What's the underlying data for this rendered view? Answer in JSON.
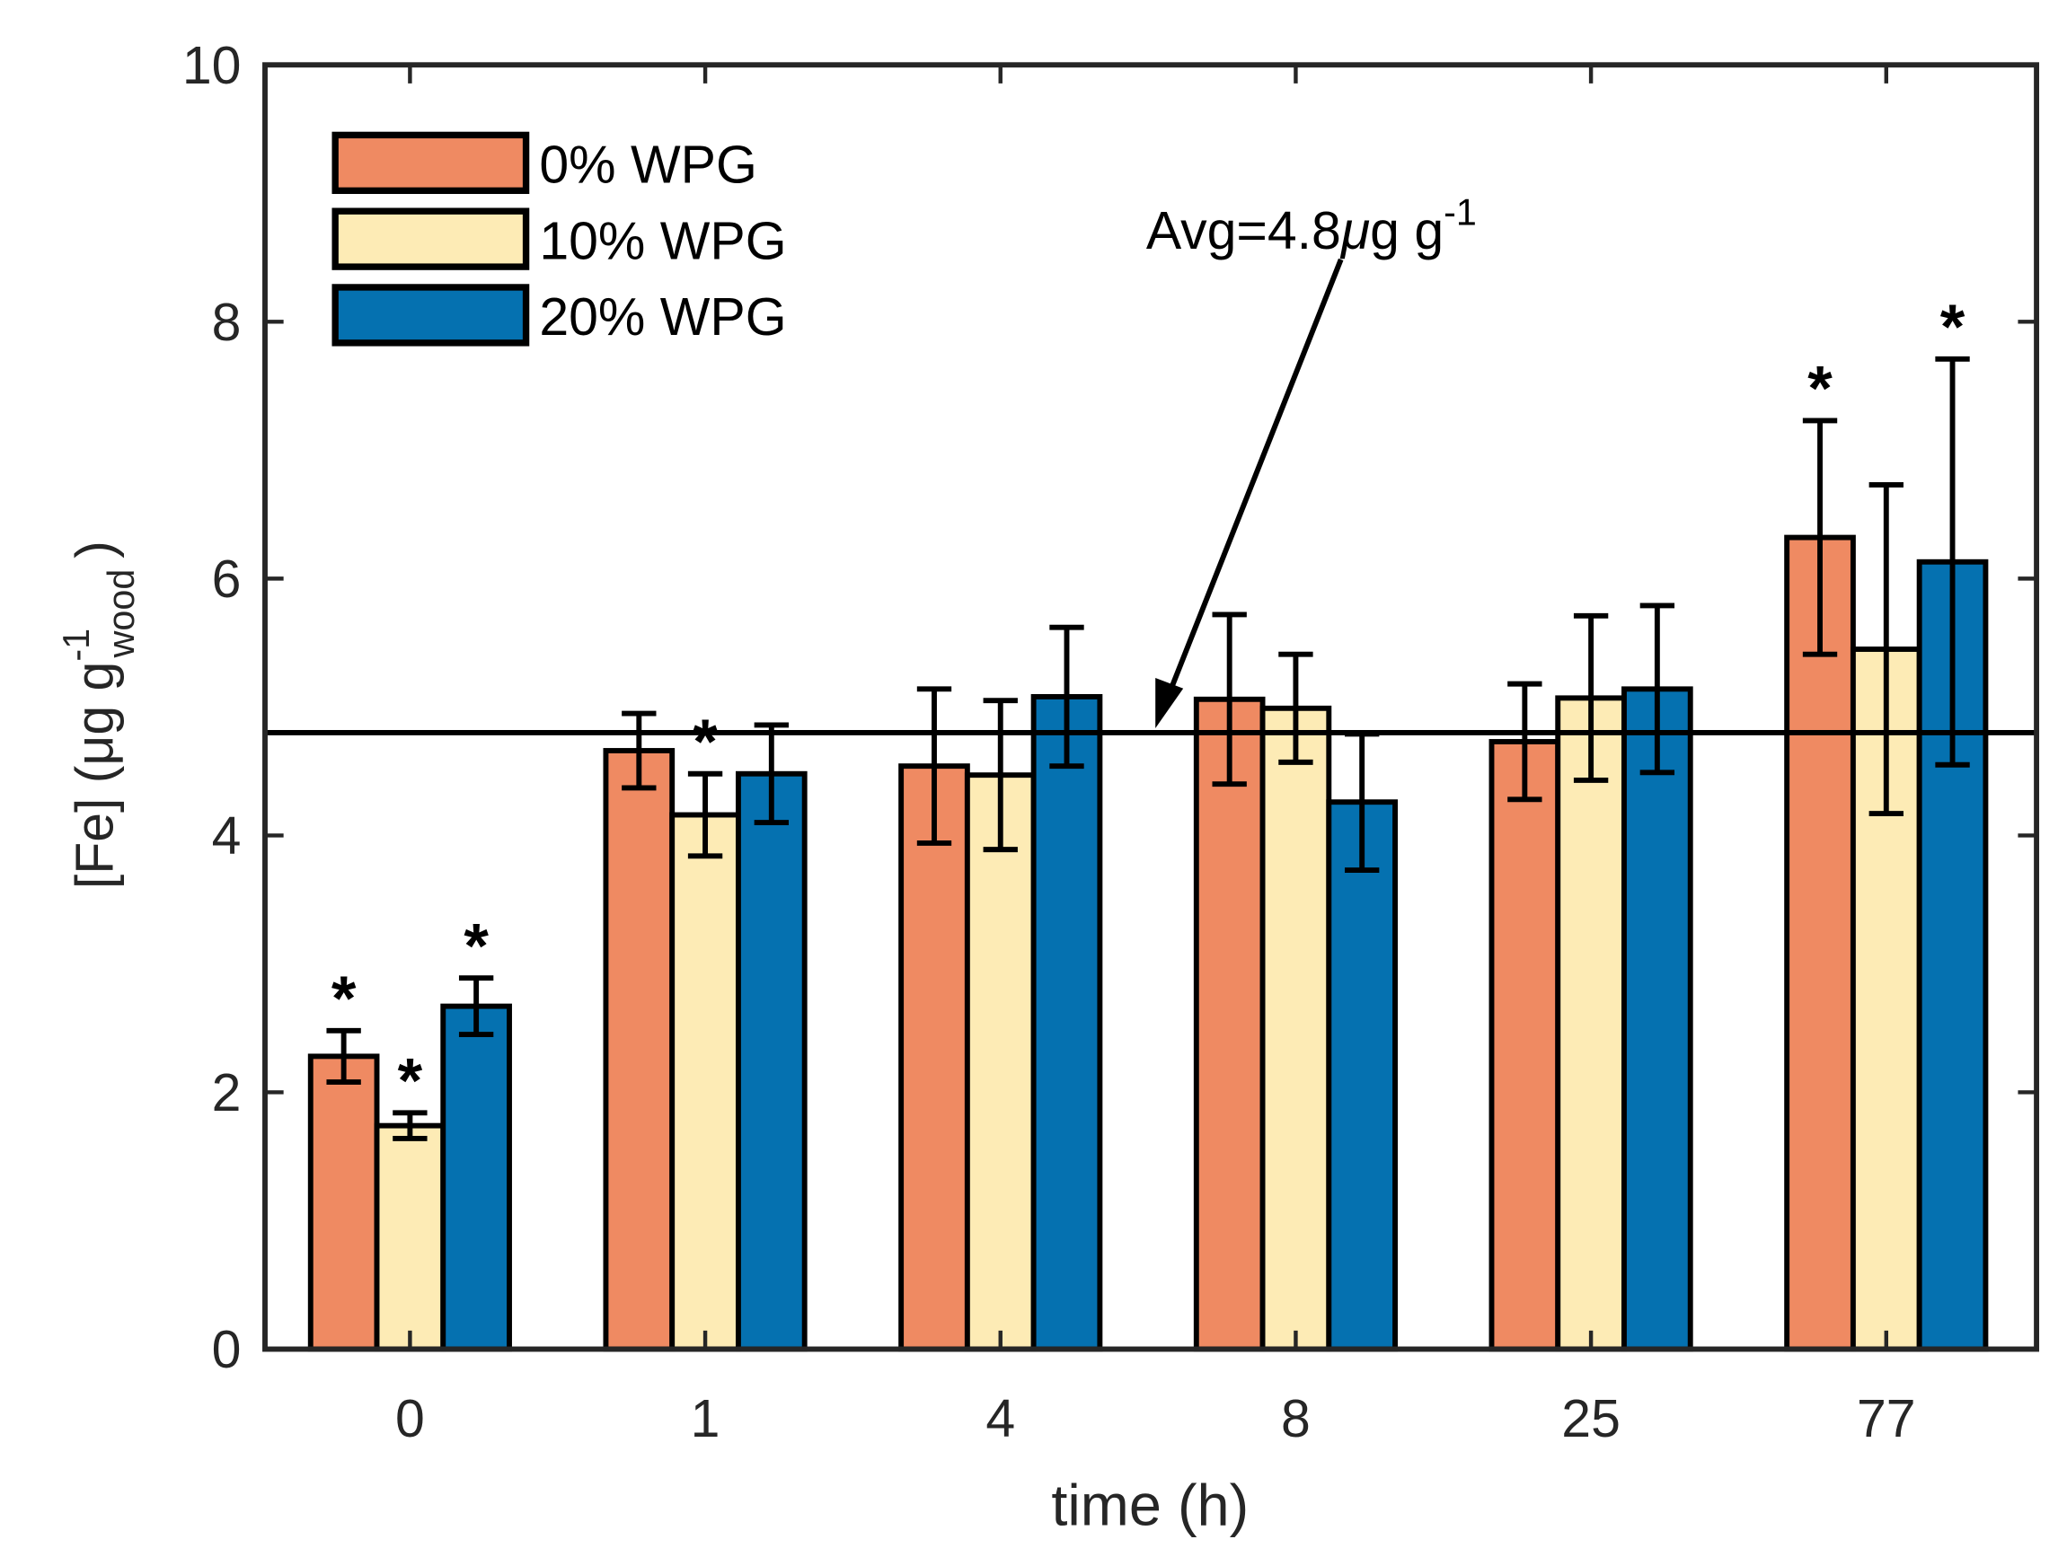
{
  "chart_data": {
    "type": "bar",
    "title": "",
    "xlabel": "time (h)",
    "ylabel": "[Fe]  (μg g",
    "ylabel_sup": "-1",
    "ylabel_sub": "wood",
    "ylabel_close": ")",
    "ylim": [
      0,
      10
    ],
    "yticks": [
      "0",
      "2",
      "4",
      "6",
      "8",
      "10"
    ],
    "categories": [
      "0",
      "1",
      "4",
      "8",
      "25",
      "77"
    ],
    "legend_position": "top-left",
    "series": [
      {
        "name": "0% WPG",
        "color": "#EF8A62",
        "values": [
          2.28,
          4.66,
          4.54,
          5.06,
          4.73,
          6.32
        ],
        "errors": [
          0.2,
          0.29,
          0.6,
          0.66,
          0.45,
          0.91
        ],
        "significant": [
          true,
          false,
          false,
          false,
          false,
          true
        ]
      },
      {
        "name": "10% WPG",
        "color": "#FDEBB5",
        "values": [
          1.74,
          4.16,
          4.47,
          4.99,
          5.07,
          5.45
        ],
        "errors": [
          0.1,
          0.32,
          0.58,
          0.42,
          0.64,
          1.28
        ],
        "significant": [
          true,
          true,
          false,
          false,
          false,
          false
        ]
      },
      {
        "name": "20% WPG",
        "color": "#0571B0",
        "values": [
          2.67,
          4.48,
          5.08,
          4.26,
          5.14,
          6.13
        ],
        "errors": [
          0.22,
          0.38,
          0.54,
          0.53,
          0.65,
          1.58
        ],
        "significant": [
          true,
          false,
          false,
          false,
          false,
          true
        ]
      }
    ],
    "reference_line": {
      "value": 4.8,
      "label": "Avg=4.8",
      "label_mu": "μ",
      "label_rest": "g g",
      "label_sup": "-1"
    },
    "significance_marker": "*"
  }
}
